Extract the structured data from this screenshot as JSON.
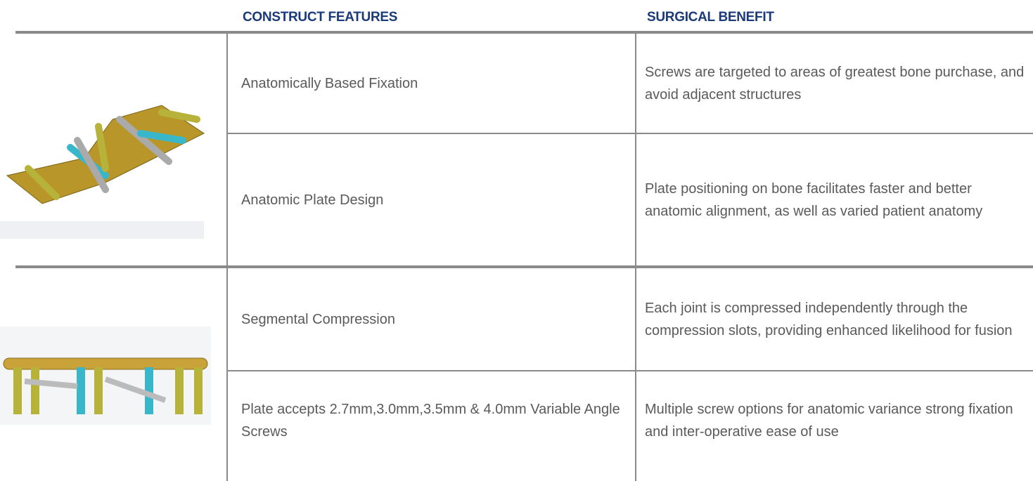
{
  "header": {
    "columns": [
      "CONSTRUCT FEATURES",
      "SURGICAL BENEFIT"
    ]
  },
  "table": {
    "rows": [
      [
        "Anatomically Based Fixation",
        "Screws are targeted to areas of greatest bone purchase, and avoid adjacent structures"
      ],
      [
        "Anatomic Plate Design",
        "Plate positioning on bone facilitates faster and better anatomic alignment, as well as varied patient anatomy"
      ],
      [
        "Segmental Compression",
        "Each joint is compressed independently through the compression slots, providing enhanced likelihood for fusion"
      ],
      [
        "Plate accepts 2.7mm,3.0mm,3.5mm & 4.0mm Variable Angle Screws",
        "Multiple screw options for anatomic variance strong fixation and inter-operative ease of use"
      ]
    ]
  }
}
